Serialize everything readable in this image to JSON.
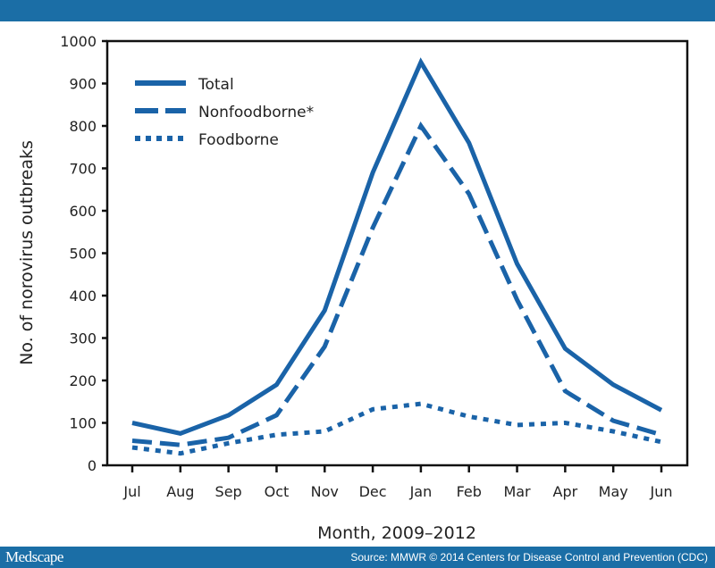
{
  "footer": {
    "logo": "Medscape",
    "source": "Source: MMWR © 2014 Centers for Disease Control and Prevention (CDC)"
  },
  "colors": {
    "bar": "#1b6ea6",
    "series": "#1a63a8"
  },
  "chart_data": {
    "type": "line",
    "title": "",
    "xlabel": "Month, 2009–2012",
    "ylabel": "No. of norovirus outbreaks",
    "categories": [
      "Jul",
      "Aug",
      "Sep",
      "Oct",
      "Nov",
      "Dec",
      "Jan",
      "Feb",
      "Mar",
      "Apr",
      "May",
      "Jun"
    ],
    "ylim": [
      0,
      1000
    ],
    "yticks": [
      0,
      100,
      200,
      300,
      400,
      500,
      600,
      700,
      800,
      900,
      1000
    ],
    "grid": false,
    "legend": "top-left",
    "series": [
      {
        "name": "Total",
        "style": "solid",
        "values": [
          100,
          75,
          118,
          190,
          365,
          690,
          950,
          760,
          475,
          275,
          190,
          130
        ]
      },
      {
        "name": "Nonfoodborne*",
        "style": "dashed",
        "values": [
          58,
          48,
          65,
          118,
          280,
          560,
          800,
          640,
          390,
          175,
          105,
          72
        ]
      },
      {
        "name": "Foodborne",
        "style": "dotted",
        "values": [
          42,
          28,
          52,
          72,
          80,
          132,
          145,
          115,
          95,
          100,
          80,
          55
        ]
      }
    ]
  }
}
